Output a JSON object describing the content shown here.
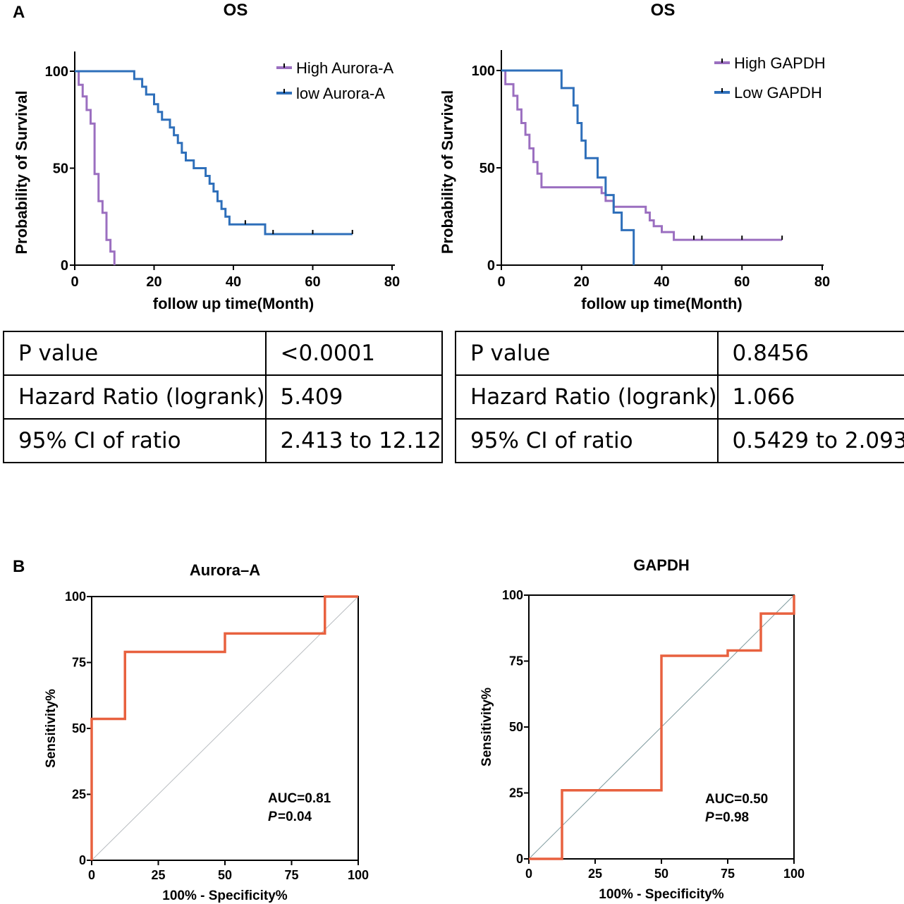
{
  "panels": {
    "a": "A",
    "b": "B"
  },
  "chart_data": [
    {
      "type": "line",
      "subtype": "kaplan-meier",
      "title": "OS",
      "xlabel": "follow up time(Month)",
      "ylabel": "Probability of Survival",
      "xlim": [
        0,
        80
      ],
      "ylim": [
        0,
        100
      ],
      "xticks": [
        0,
        20,
        40,
        60,
        80
      ],
      "yticks": [
        0,
        50,
        100
      ],
      "legend": "top-right",
      "series": [
        {
          "name": "High Aurora-A",
          "color": "#9b6fc0",
          "steps": [
            [
              0,
              100
            ],
            [
              1,
              93
            ],
            [
              2,
              87
            ],
            [
              3,
              80
            ],
            [
              4,
              73
            ],
            [
              5,
              47
            ],
            [
              6,
              33
            ],
            [
              7,
              27
            ],
            [
              8,
              13
            ],
            [
              9,
              7
            ],
            [
              10,
              0
            ]
          ],
          "censored": []
        },
        {
          "name": "low Aurora-A",
          "color": "#2e6fba",
          "steps": [
            [
              0,
              100
            ],
            [
              15,
              96
            ],
            [
              17,
              92
            ],
            [
              18,
              88
            ],
            [
              20,
              83
            ],
            [
              21,
              79
            ],
            [
              22,
              75
            ],
            [
              24,
              71
            ],
            [
              25,
              67
            ],
            [
              26,
              63
            ],
            [
              27,
              58
            ],
            [
              28,
              54
            ],
            [
              30,
              50
            ],
            [
              33,
              46
            ],
            [
              34,
              42
            ],
            [
              35,
              38
            ],
            [
              36,
              33
            ],
            [
              37,
              29
            ],
            [
              38,
              25
            ],
            [
              39,
              21
            ],
            [
              48,
              16
            ],
            [
              70,
              16
            ]
          ],
          "censored": [
            [
              43,
              21
            ],
            [
              50,
              16
            ],
            [
              60,
              16
            ],
            [
              70,
              16
            ]
          ]
        }
      ]
    },
    {
      "type": "line",
      "subtype": "kaplan-meier",
      "title": "OS",
      "xlabel": "follow up time(Month)",
      "ylabel": "Probability of Survival",
      "xlim": [
        0,
        80
      ],
      "ylim": [
        0,
        100
      ],
      "xticks": [
        0,
        20,
        40,
        60,
        80
      ],
      "yticks": [
        0,
        50,
        100
      ],
      "legend": "top-right",
      "series": [
        {
          "name": "High GAPDH",
          "color": "#9b6fc0",
          "steps": [
            [
              0,
              100
            ],
            [
              1,
              93
            ],
            [
              3,
              87
            ],
            [
              4,
              80
            ],
            [
              5,
              73
            ],
            [
              6,
              67
            ],
            [
              7,
              60
            ],
            [
              8,
              53
            ],
            [
              9,
              47
            ],
            [
              10,
              40
            ],
            [
              16,
              40
            ],
            [
              18,
              40
            ],
            [
              22,
              40
            ],
            [
              25,
              37
            ],
            [
              26,
              33
            ],
            [
              28,
              30
            ],
            [
              32,
              30
            ],
            [
              33,
              30
            ],
            [
              36,
              27
            ],
            [
              37,
              23
            ],
            [
              38,
              20
            ],
            [
              40,
              17
            ],
            [
              43,
              13
            ],
            [
              70,
              13
            ]
          ],
          "censored": [
            [
              48,
              13
            ],
            [
              50,
              13
            ],
            [
              60,
              13
            ],
            [
              70,
              13
            ]
          ]
        },
        {
          "name": "Low GAPDH",
          "color": "#2e6fba",
          "steps": [
            [
              0,
              100
            ],
            [
              15,
              91
            ],
            [
              18,
              82
            ],
            [
              19,
              73
            ],
            [
              20,
              64
            ],
            [
              21,
              55
            ],
            [
              24,
              45
            ],
            [
              26,
              36
            ],
            [
              28,
              27
            ],
            [
              30,
              18
            ],
            [
              33,
              0
            ]
          ],
          "censored": []
        }
      ]
    },
    {
      "type": "line",
      "subtype": "roc",
      "title": "Aurora–A",
      "xlabel": "100% - Specificity%",
      "ylabel": "Sensitivity%",
      "xlim": [
        0,
        100
      ],
      "ylim": [
        0,
        100
      ],
      "xticks": [
        0,
        25,
        50,
        75,
        100
      ],
      "yticks": [
        0,
        25,
        50,
        75,
        100
      ],
      "series": [
        {
          "name": "ROC",
          "color": "#e8613f",
          "x": [
            0,
            0,
            12.5,
            12.5,
            50,
            50,
            87.5,
            87.5,
            100
          ],
          "y": [
            0,
            53.6,
            53.6,
            79,
            79,
            86,
            86,
            100,
            100
          ]
        }
      ],
      "auc_label": "AUC=0.81",
      "p_label": "P",
      "p_value": "=0.04"
    },
    {
      "type": "line",
      "subtype": "roc",
      "title": "GAPDH",
      "xlabel": "100% - Specificity%",
      "ylabel": "Sensitivity%",
      "xlim": [
        0,
        100
      ],
      "ylim": [
        0,
        100
      ],
      "xticks": [
        0,
        25,
        50,
        75,
        100
      ],
      "yticks": [
        0,
        25,
        50,
        75,
        100
      ],
      "series": [
        {
          "name": "ROC",
          "color": "#e8613f",
          "x": [
            0,
            12.5,
            12.5,
            50,
            50,
            75,
            75,
            87.5,
            87.5,
            100,
            100
          ],
          "y": [
            0,
            0,
            26,
            26,
            77,
            77,
            79,
            79,
            93,
            93,
            100
          ]
        }
      ],
      "auc_label": "AUC=0.50",
      "p_label": "P",
      "p_value": "=0.98"
    }
  ],
  "tables": [
    {
      "rows": [
        [
          "P value",
          "<0.0001"
        ],
        [
          "Hazard Ratio (logrank)",
          "5.409"
        ],
        [
          "95% CI of ratio",
          "2.413 to 12.12"
        ]
      ]
    },
    {
      "rows": [
        [
          "P value",
          "0.8456"
        ],
        [
          "Hazard Ratio (logrank)",
          "1.066"
        ],
        [
          "95% CI of ratio",
          "0.5429 to 2.093"
        ]
      ]
    }
  ]
}
